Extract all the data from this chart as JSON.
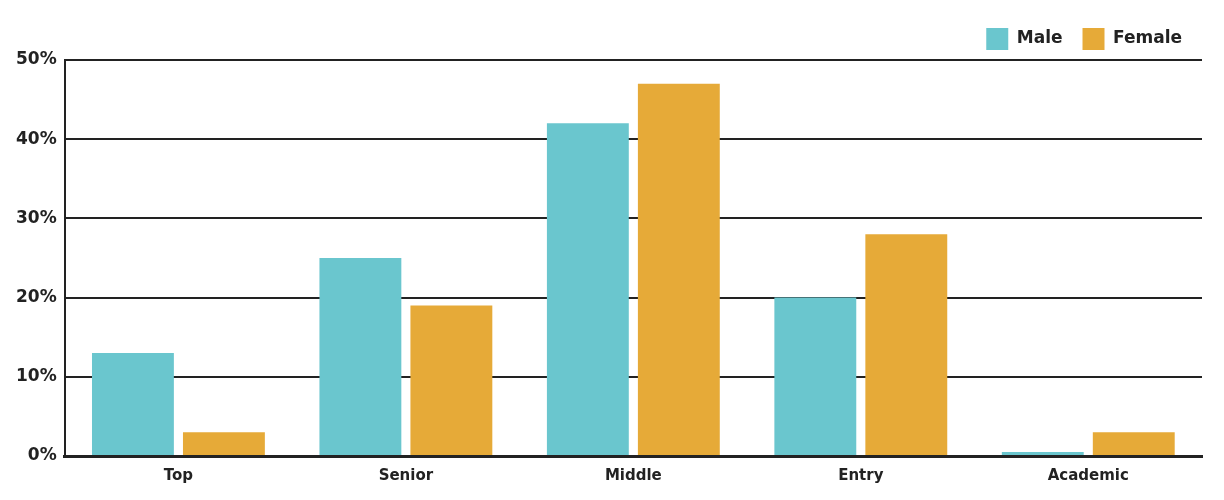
{
  "chart_data": {
    "type": "bar",
    "categories": [
      "Top",
      "Senior",
      "Middle",
      "Entry",
      "Academic"
    ],
    "series": [
      {
        "name": "Male",
        "color": "#6ac6ce",
        "values": [
          13,
          25,
          42,
          20,
          0.5
        ]
      },
      {
        "name": "Female",
        "color": "#e6aa38",
        "values": [
          3,
          19,
          47,
          28,
          3
        ]
      }
    ],
    "ylim": [
      0,
      50
    ],
    "yticks": [
      {
        "value": 0,
        "label": "0%"
      },
      {
        "value": 10,
        "label": "10%"
      },
      {
        "value": 20,
        "label": "20%"
      },
      {
        "value": 30,
        "label": "30%"
      },
      {
        "value": 40,
        "label": "40%"
      },
      {
        "value": 50,
        "label": "50%"
      }
    ],
    "grid": "y",
    "legend": "top right"
  }
}
